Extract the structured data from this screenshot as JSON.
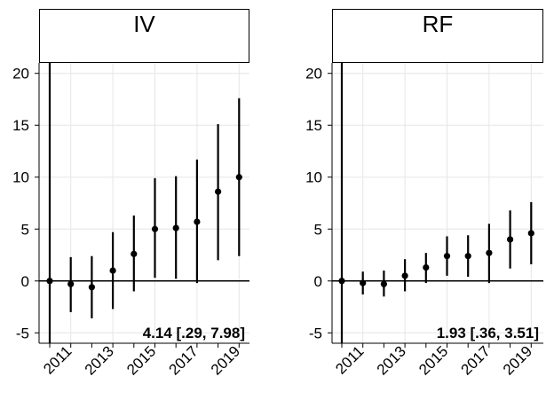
{
  "chart_data": [
    {
      "type": "scatter",
      "title": "IV",
      "x": [
        "2010",
        "2011",
        "2012",
        "2013",
        "2014",
        "2015",
        "2016",
        "2017",
        "2018",
        "2019"
      ],
      "x_tick_labels": [
        "2011",
        "2013",
        "2015",
        "2017",
        "2019"
      ],
      "series": [
        {
          "values": [
            0,
            -0.3,
            -0.6,
            1.0,
            2.6,
            5.0,
            5.1,
            5.7,
            8.6,
            10.0
          ],
          "ci_lower": [
            -7,
            -3.0,
            -3.6,
            -2.7,
            -1.0,
            0.3,
            0.2,
            -0.2,
            2.0,
            2.4
          ],
          "ci_upper": [
            21,
            2.3,
            2.4,
            4.7,
            6.3,
            9.9,
            10.1,
            11.7,
            15.1,
            17.6
          ]
        }
      ],
      "y_ticks": [
        -5,
        0,
        5,
        10,
        15,
        20
      ],
      "y_tick_labels": [
        "-5",
        "0",
        "5",
        "10",
        "15",
        "20"
      ],
      "ylim": [
        -6,
        21
      ],
      "annotation": "4.14 [.29, 7.98]",
      "grid": true,
      "reference_line_y": 0
    },
    {
      "type": "scatter",
      "title": "RF",
      "x": [
        "2010",
        "2011",
        "2012",
        "2013",
        "2014",
        "2015",
        "2016",
        "2017",
        "2018",
        "2019"
      ],
      "x_tick_labels": [
        "2011",
        "2013",
        "2015",
        "2017",
        "2019"
      ],
      "series": [
        {
          "values": [
            0,
            -0.2,
            -0.3,
            0.5,
            1.3,
            2.4,
            2.4,
            2.7,
            4.0,
            4.6
          ],
          "ci_lower": [
            -7,
            -1.3,
            -1.5,
            -1.0,
            -0.2,
            0.5,
            0.4,
            -0.2,
            1.2,
            1.6
          ],
          "ci_upper": [
            21,
            0.9,
            1.0,
            2.1,
            2.7,
            4.3,
            4.4,
            5.5,
            6.8,
            7.6
          ]
        }
      ],
      "y_ticks": [
        -5,
        0,
        5,
        10,
        15,
        20
      ],
      "y_tick_labels": [
        "-5",
        "0",
        "5",
        "10",
        "15",
        "20"
      ],
      "ylim": [
        -6,
        21
      ],
      "annotation": "1.93 [.36, 3.51]",
      "grid": true,
      "reference_line_y": 0
    }
  ],
  "colors": {
    "marker": "#000000",
    "grid": "#e6e6e6",
    "axis": "#000000",
    "background": "#ffffff"
  }
}
